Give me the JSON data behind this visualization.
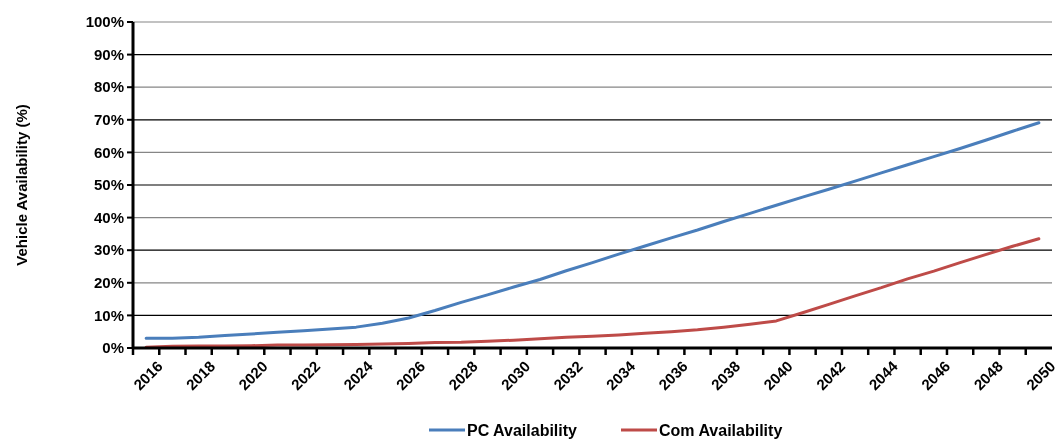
{
  "chart_data": {
    "type": "line",
    "ylabel": "Vehicle Availability (%)",
    "categories": [
      "2016",
      null,
      "2018",
      null,
      "2020",
      null,
      "2022",
      null,
      "2024",
      null,
      "2026",
      null,
      "2028",
      null,
      "2030",
      null,
      "2032",
      null,
      "2034",
      null,
      "2036",
      null,
      "2038",
      null,
      "2040",
      null,
      "2042",
      null,
      "2044",
      null,
      "2046",
      null,
      "2048",
      null,
      "2050"
    ],
    "series": [
      {
        "name": "PC Availability",
        "color": "#4a7ebb",
        "values": [
          3,
          3,
          3.3,
          3.8,
          4.3,
          4.8,
          5.3,
          5.8,
          6.4,
          7.6,
          9.2,
          11.5,
          14,
          16.3,
          18.7,
          21,
          23.7,
          26.2,
          28.8,
          31.3,
          33.8,
          36.2,
          38.8,
          41.3,
          43.8,
          46.3,
          48.7,
          51.2,
          53.7,
          56.2,
          58.7,
          61.2,
          63.8,
          66.5,
          69.1
        ]
      },
      {
        "name": "Com Availability",
        "color": "#be4b48",
        "values": [
          0.2,
          0.5,
          0.6,
          0.6,
          0.7,
          0.9,
          0.9,
          1.0,
          1.1,
          1.2,
          1.4,
          1.7,
          1.8,
          2.1,
          2.4,
          2.8,
          3.3,
          3.6,
          4.0,
          4.5,
          5.0,
          5.6,
          6.4,
          7.3,
          8.3,
          10.8,
          13.4,
          16,
          18.5,
          21.2,
          23.6,
          26.2,
          28.7,
          31.2,
          33.5
        ]
      }
    ],
    "ylim": [
      0,
      100
    ],
    "yticks": [
      {
        "value": 0,
        "label": "0%"
      },
      {
        "value": 10,
        "label": "10%"
      },
      {
        "value": 20,
        "label": "20%"
      },
      {
        "value": 30,
        "label": "30%"
      },
      {
        "value": 40,
        "label": "40%"
      },
      {
        "value": 50,
        "label": "50%"
      },
      {
        "value": 60,
        "label": "60%"
      },
      {
        "value": 70,
        "label": "70%"
      },
      {
        "value": 80,
        "label": "80%"
      },
      {
        "value": 90,
        "label": "90%"
      },
      {
        "value": 100,
        "label": "100%"
      }
    ],
    "grid": "y",
    "legend": "bottom",
    "marker": "none",
    "line_style": "solid"
  }
}
